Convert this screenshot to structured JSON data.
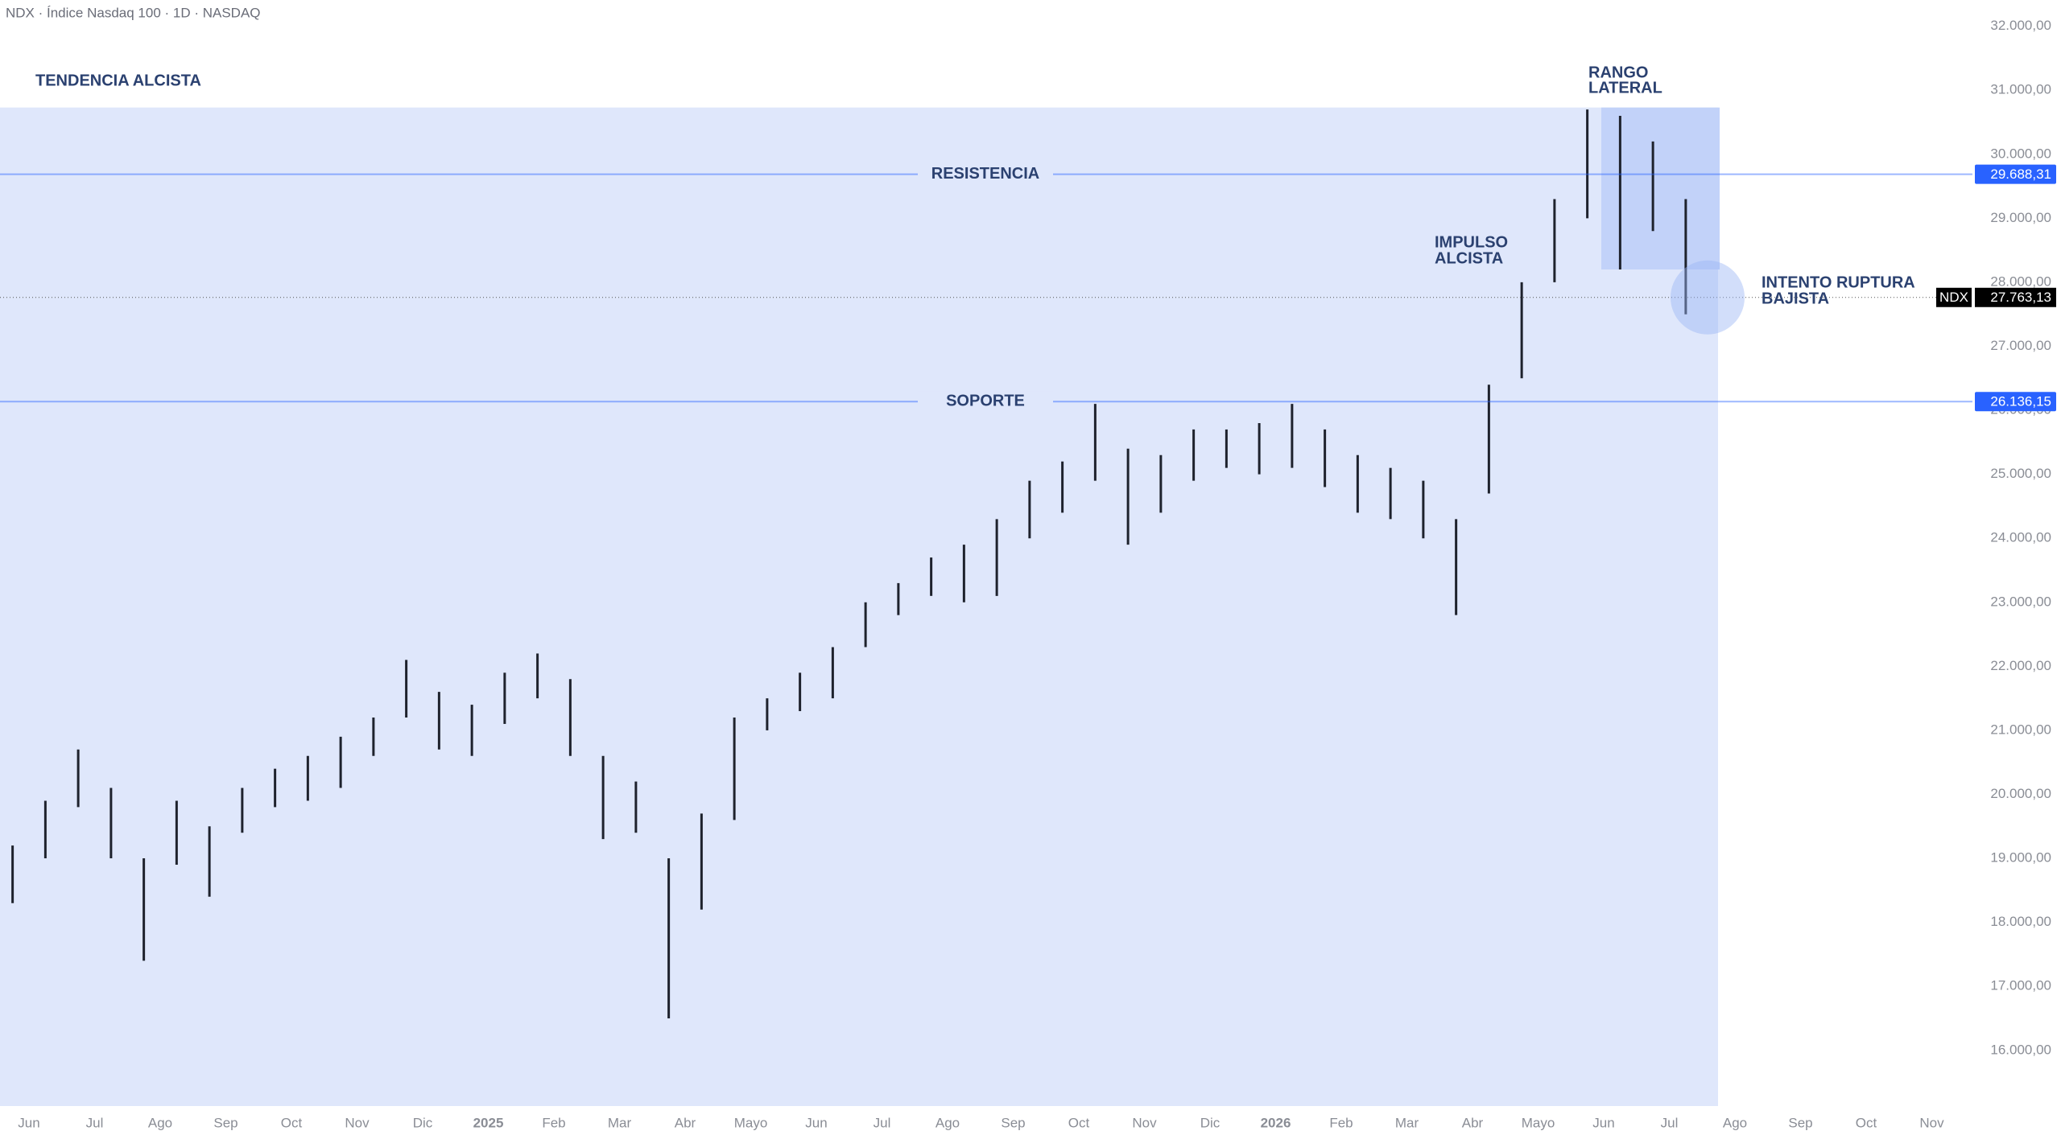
{
  "chart_data": {
    "type": "ohlc",
    "title": "NDX · Índice Nasdaq 100 · 1D · NASDAQ",
    "categories": [
      "Jun",
      "Jul",
      "Ago",
      "Sep",
      "Oct",
      "Nov",
      "Dic",
      "2025",
      "Feb",
      "Mar",
      "Abr",
      "Mayo",
      "Jun",
      "Jul",
      "Ago",
      "Sep",
      "Oct",
      "Nov",
      "Dic",
      "2026",
      "Feb",
      "Mar",
      "Abr",
      "Mayo",
      "Jun",
      "Jul",
      "Ago",
      "Sep",
      "Oct",
      "Nov"
    ],
    "lows": [
      [
        18300,
        19000
      ],
      [
        19800,
        19000
      ],
      [
        17400,
        18900
      ],
      [
        18400,
        19400
      ],
      [
        19800,
        19900
      ],
      [
        20100,
        20600
      ],
      [
        21200,
        20700
      ],
      [
        20600,
        21100
      ],
      [
        21500,
        20600
      ],
      [
        19300,
        19400
      ],
      [
        16500,
        18200
      ],
      [
        19600,
        21000
      ],
      [
        21300,
        21500
      ],
      [
        22300,
        22800
      ],
      [
        23100,
        23000
      ],
      [
        23100,
        24000
      ],
      [
        24400,
        24900
      ],
      [
        23900,
        24400
      ],
      [
        24900,
        25100
      ],
      [
        25000,
        25100
      ],
      [
        24800,
        24400
      ],
      [
        24300,
        24000
      ],
      [
        22800,
        24700
      ],
      [
        26500,
        28000
      ],
      [
        29000,
        28200
      ],
      [
        28800,
        27500
      ],
      null,
      null,
      null,
      null
    ],
    "highs": [
      [
        19200,
        19900
      ],
      [
        20700,
        20100
      ],
      [
        19000,
        19900
      ],
      [
        19500,
        20100
      ],
      [
        20400,
        20600
      ],
      [
        20900,
        21200
      ],
      [
        22100,
        21600
      ],
      [
        21400,
        21900
      ],
      [
        22200,
        21800
      ],
      [
        20600,
        20200
      ],
      [
        19000,
        19700
      ],
      [
        21200,
        21500
      ],
      [
        21900,
        22300
      ],
      [
        23000,
        23300
      ],
      [
        23700,
        23900
      ],
      [
        24300,
        24900
      ],
      [
        25200,
        26100
      ],
      [
        25400,
        25300
      ],
      [
        25700,
        25700
      ],
      [
        25800,
        26100
      ],
      [
        25700,
        25300
      ],
      [
        25100,
        24900
      ],
      [
        24300,
        26400
      ],
      [
        28000,
        29300
      ],
      [
        30700,
        30600
      ],
      [
        30200,
        29300
      ],
      null,
      null,
      null,
      null
    ],
    "bar_color": "#1e222d",
    "ylim": [
      15130,
      32410
    ],
    "yticks": [
      {
        "value": 16000,
        "label": "16.000,00"
      },
      {
        "value": 17000,
        "label": "17.000,00"
      },
      {
        "value": 18000,
        "label": "18.000,00"
      },
      {
        "value": 19000,
        "label": "19.000,00"
      },
      {
        "value": 20000,
        "label": "20.000,00"
      },
      {
        "value": 21000,
        "label": "21.000,00"
      },
      {
        "value": 22000,
        "label": "22.000,00"
      },
      {
        "value": 23000,
        "label": "23.000,00"
      },
      {
        "value": 24000,
        "label": "24.000,00"
      },
      {
        "value": 25000,
        "label": "25.000,00"
      },
      {
        "value": 26000,
        "label": "26.000,00"
      },
      {
        "value": 27000,
        "label": "27.000,00"
      },
      {
        "value": 28000,
        "label": "28.000,00"
      },
      {
        "value": 29000,
        "label": "29.000,00"
      },
      {
        "value": 30000,
        "label": "30.000,00"
      },
      {
        "value": 31000,
        "label": "31.000,00"
      },
      {
        "value": 32000,
        "label": "32.000,00"
      }
    ],
    "levels": [
      {
        "name": "RESISTENCIA",
        "value": 29688.31,
        "value_label": "29.688,31",
        "color": "#2962ff"
      },
      {
        "name": "SOPORTE",
        "value": 26136.15,
        "value_label": "26.136,15",
        "color": "#2962ff"
      }
    ],
    "current": {
      "symbol": "NDX",
      "value": 27763.13,
      "value_label": "27.763,13"
    },
    "trend_zone": {
      "label": "TENDENCIA ALCISTA",
      "top": 30730,
      "color": "#dfe7fb"
    },
    "range_box": {
      "label": [
        "RANGO",
        "LATERAL"
      ],
      "top": 30730,
      "bottom": 28200,
      "color": "#c2d2f9"
    },
    "annotations": [
      {
        "lines": [
          "IMPULSO",
          "ALCISTA"
        ]
      },
      {
        "lines": [
          "INTENTO RUPTURA",
          "BAJISTA"
        ]
      }
    ]
  }
}
